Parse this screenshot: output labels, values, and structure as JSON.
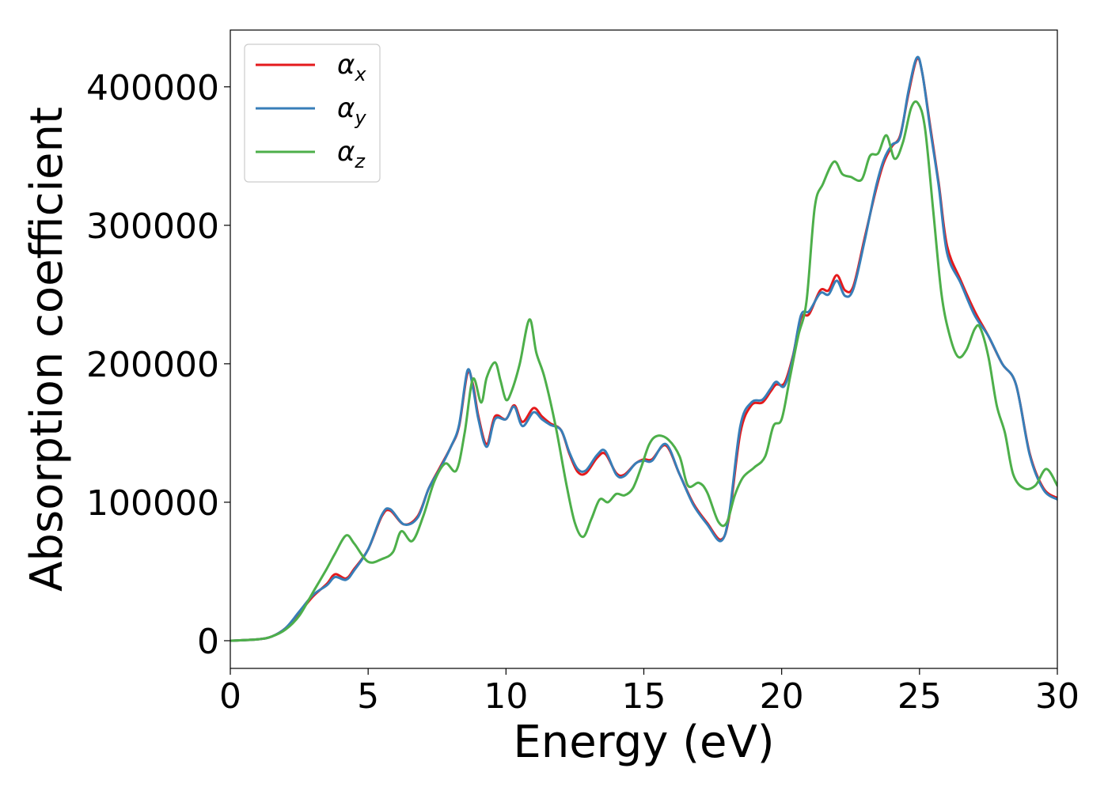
{
  "chart_data": {
    "type": "line",
    "title": "",
    "xlabel": "Energy (eV)",
    "ylabel": "Absorption coefficient",
    "xlim": [
      0,
      30
    ],
    "ylim": [
      -20000,
      441000
    ],
    "xticks": [
      0,
      5,
      10,
      15,
      20,
      25,
      30
    ],
    "yticks": [
      0,
      100000,
      200000,
      300000,
      400000
    ],
    "grid": false,
    "legend_position": "top-left",
    "series": [
      {
        "name": "α",
        "subscript": "x",
        "color": "#e41a1c",
        "x": [
          0,
          1,
          1.5,
          2,
          2.5,
          3,
          3.5,
          3.8,
          4.2,
          4.5,
          5,
          5.5,
          5.8,
          6.3,
          6.8,
          7.2,
          7.6,
          8,
          8.3,
          8.6,
          8.8,
          9,
          9.3,
          9.6,
          10,
          10.3,
          10.6,
          11,
          11.3,
          11.6,
          12,
          12.3,
          12.6,
          12.9,
          13.3,
          13.6,
          14,
          14.3,
          14.7,
          15,
          15.3,
          15.8,
          16.3,
          16.8,
          17.3,
          17.8,
          18.1,
          18.5,
          18.9,
          19.3,
          19.6,
          19.8,
          20.1,
          20.4,
          20.7,
          21,
          21.4,
          21.7,
          22,
          22.3,
          22.6,
          23,
          23.4,
          23.7,
          24,
          24.3,
          24.6,
          24.9,
          25.1,
          25.4,
          25.7,
          26,
          26.5,
          27,
          27.5,
          28,
          28.5,
          29,
          29.5,
          30
        ],
        "y": [
          0,
          1000,
          3000,
          9000,
          20000,
          32000,
          41000,
          48000,
          45000,
          52000,
          66000,
          90000,
          94000,
          84000,
          90000,
          110000,
          125000,
          140000,
          155000,
          193000,
          185000,
          162000,
          142000,
          162000,
          160000,
          170000,
          158000,
          168000,
          162000,
          157000,
          152000,
          135000,
          122000,
          121000,
          132000,
          135000,
          121000,
          120000,
          128000,
          131000,
          131000,
          141000,
          120000,
          99000,
          85000,
          73000,
          90000,
          150000,
          170000,
          172000,
          180000,
          185000,
          186000,
          205000,
          233000,
          236000,
          253000,
          253000,
          264000,
          253000,
          256000,
          290000,
          324000,
          345000,
          357000,
          365000,
          395000,
          420000,
          410000,
          370000,
          330000,
          285000,
          260000,
          238000,
          220000,
          200000,
          185000,
          135000,
          110000,
          103000
        ]
      },
      {
        "name": "α",
        "subscript": "y",
        "color": "#377eb8",
        "x": [
          0,
          1,
          1.5,
          2,
          2.5,
          3,
          3.5,
          3.8,
          4.2,
          4.5,
          5,
          5.5,
          5.8,
          6.3,
          6.8,
          7.2,
          7.6,
          8,
          8.3,
          8.6,
          8.8,
          9,
          9.3,
          9.6,
          10,
          10.3,
          10.6,
          11,
          11.3,
          11.6,
          12,
          12.3,
          12.6,
          12.9,
          13.3,
          13.6,
          14,
          14.3,
          14.7,
          15,
          15.3,
          15.8,
          16.3,
          16.8,
          17.3,
          17.8,
          18.1,
          18.5,
          18.9,
          19.3,
          19.6,
          19.8,
          20.1,
          20.4,
          20.7,
          21,
          21.4,
          21.7,
          22,
          22.3,
          22.6,
          23,
          23.4,
          23.7,
          24,
          24.3,
          24.6,
          24.9,
          25.1,
          25.4,
          25.7,
          26,
          26.5,
          27,
          27.5,
          28,
          28.5,
          29,
          29.5,
          30
        ],
        "y": [
          0,
          1000,
          3000,
          9000,
          21000,
          33000,
          40000,
          46000,
          44000,
          51000,
          66000,
          91000,
          95000,
          84000,
          89000,
          110000,
          124000,
          140000,
          156000,
          195000,
          183000,
          160000,
          140000,
          160000,
          160000,
          169000,
          155000,
          165000,
          160000,
          156000,
          152000,
          136000,
          124000,
          123000,
          134000,
          137000,
          120000,
          119000,
          128000,
          130000,
          130000,
          142000,
          120000,
          98000,
          84000,
          72000,
          92000,
          155000,
          172000,
          174000,
          182000,
          187000,
          184000,
          204000,
          235000,
          238000,
          251000,
          250000,
          260000,
          249000,
          254000,
          288000,
          326000,
          347000,
          358000,
          364000,
          397000,
          421000,
          410000,
          368000,
          328000,
          280000,
          258000,
          235000,
          220000,
          200000,
          185000,
          134000,
          109000,
          102000
        ]
      },
      {
        "name": "α",
        "subscript": "z",
        "color": "#4daf4a",
        "x": [
          0,
          1,
          1.5,
          2,
          2.5,
          3,
          3.5,
          3.8,
          4.2,
          4.5,
          5,
          5.5,
          5.9,
          6.2,
          6.6,
          7,
          7.4,
          7.8,
          8.2,
          8.5,
          8.8,
          9.1,
          9.3,
          9.6,
          9.8,
          10,
          10.2,
          10.5,
          10.85,
          11.1,
          11.4,
          11.8,
          12.2,
          12.5,
          12.8,
          13.1,
          13.4,
          13.7,
          14,
          14.3,
          14.6,
          14.9,
          15.2,
          15.5,
          15.9,
          16.3,
          16.6,
          17,
          17.3,
          17.7,
          18,
          18.3,
          18.6,
          19,
          19.4,
          19.7,
          20,
          20.3,
          20.6,
          20.9,
          21.2,
          21.5,
          21.9,
          22.2,
          22.5,
          22.9,
          23.2,
          23.5,
          23.8,
          24.1,
          24.4,
          24.7,
          24.95,
          25.2,
          25.5,
          25.8,
          26.1,
          26.4,
          26.7,
          27,
          27.2,
          27.5,
          27.8,
          28.1,
          28.4,
          28.8,
          29.2,
          29.6,
          30
        ],
        "y": [
          0,
          1000,
          3000,
          8000,
          18000,
          35000,
          52000,
          63000,
          76000,
          70000,
          57000,
          59000,
          64000,
          79000,
          72000,
          90000,
          115000,
          128000,
          123000,
          150000,
          189000,
          172000,
          190000,
          201000,
          188000,
          174000,
          180000,
          200000,
          232000,
          208000,
          190000,
          155000,
          112000,
          85000,
          75000,
          88000,
          102000,
          100000,
          106000,
          105000,
          110000,
          125000,
          142000,
          148000,
          145000,
          133000,
          112000,
          114000,
          107000,
          86000,
          85000,
          105000,
          118000,
          125000,
          133000,
          155000,
          160000,
          190000,
          220000,
          245000,
          313000,
          330000,
          346000,
          337000,
          335000,
          333000,
          350000,
          352000,
          365000,
          348000,
          360000,
          385000,
          388000,
          370000,
          310000,
          250000,
          220000,
          205000,
          210000,
          225000,
          226000,
          205000,
          170000,
          150000,
          120000,
          110000,
          112000,
          124000,
          112000
        ]
      }
    ]
  }
}
